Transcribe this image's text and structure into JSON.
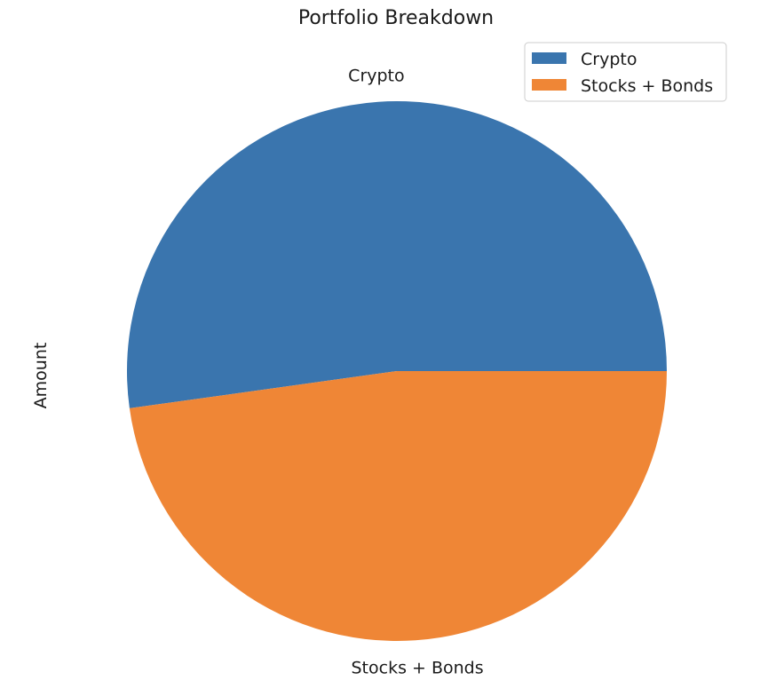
{
  "chart_data": {
    "type": "pie",
    "title": "Portfolio Breakdown",
    "ylabel": "Amount",
    "categories": [
      "Crypto",
      "Stocks + Bonds"
    ],
    "values": [
      52.2,
      47.8
    ],
    "colors": [
      "#3a75ae",
      "#ef8636"
    ],
    "start_angle_deg": 0,
    "direction": "counterclockwise",
    "legend": {
      "entries": [
        "Crypto",
        "Stocks + Bonds"
      ],
      "placement": "top-right"
    }
  }
}
